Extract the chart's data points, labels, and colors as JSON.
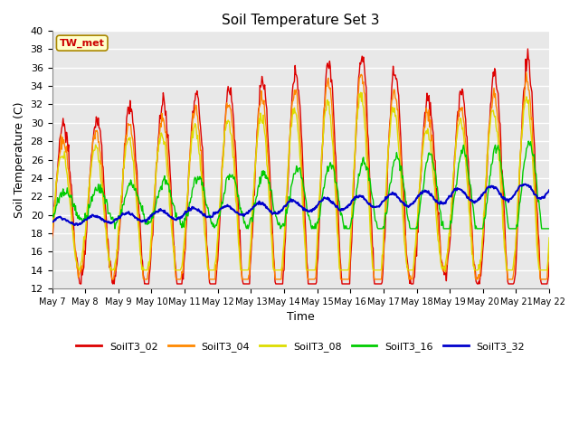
{
  "title": "Soil Temperature Set 3",
  "xlabel": "Time",
  "ylabel": "Soil Temperature (C)",
  "ylim": [
    12,
    40
  ],
  "yticks": [
    12,
    14,
    16,
    18,
    20,
    22,
    24,
    26,
    28,
    30,
    32,
    34,
    36,
    38,
    40
  ],
  "fig_bg_color": "#ffffff",
  "plot_bg_color": "#e8e8e8",
  "grid_color": "#ffffff",
  "annotation_text": "TW_met",
  "annotation_bg": "#ffffcc",
  "annotation_fg": "#cc0000",
  "annotation_border": "#aa8800",
  "series_names": [
    "SoilT3_02",
    "SoilT3_04",
    "SoilT3_08",
    "SoilT3_16",
    "SoilT3_32"
  ],
  "series_colors": [
    "#dd0000",
    "#ff8800",
    "#dddd00",
    "#00cc00",
    "#0000cc"
  ],
  "series_lw": [
    1.0,
    1.0,
    1.0,
    1.0,
    1.5
  ],
  "x_tick_days": [
    7,
    8,
    9,
    10,
    11,
    12,
    13,
    14,
    15,
    16,
    17,
    18,
    19,
    20,
    21,
    22
  ],
  "x_tick_labels": [
    "May 7",
    "May 8",
    "May 9",
    "May 10",
    "May 11",
    "May 12",
    "May 13",
    "May 14",
    "May 15",
    "May 16",
    "May 17",
    "May 18",
    "May 19",
    "May 20",
    "May 21",
    "May 22"
  ]
}
